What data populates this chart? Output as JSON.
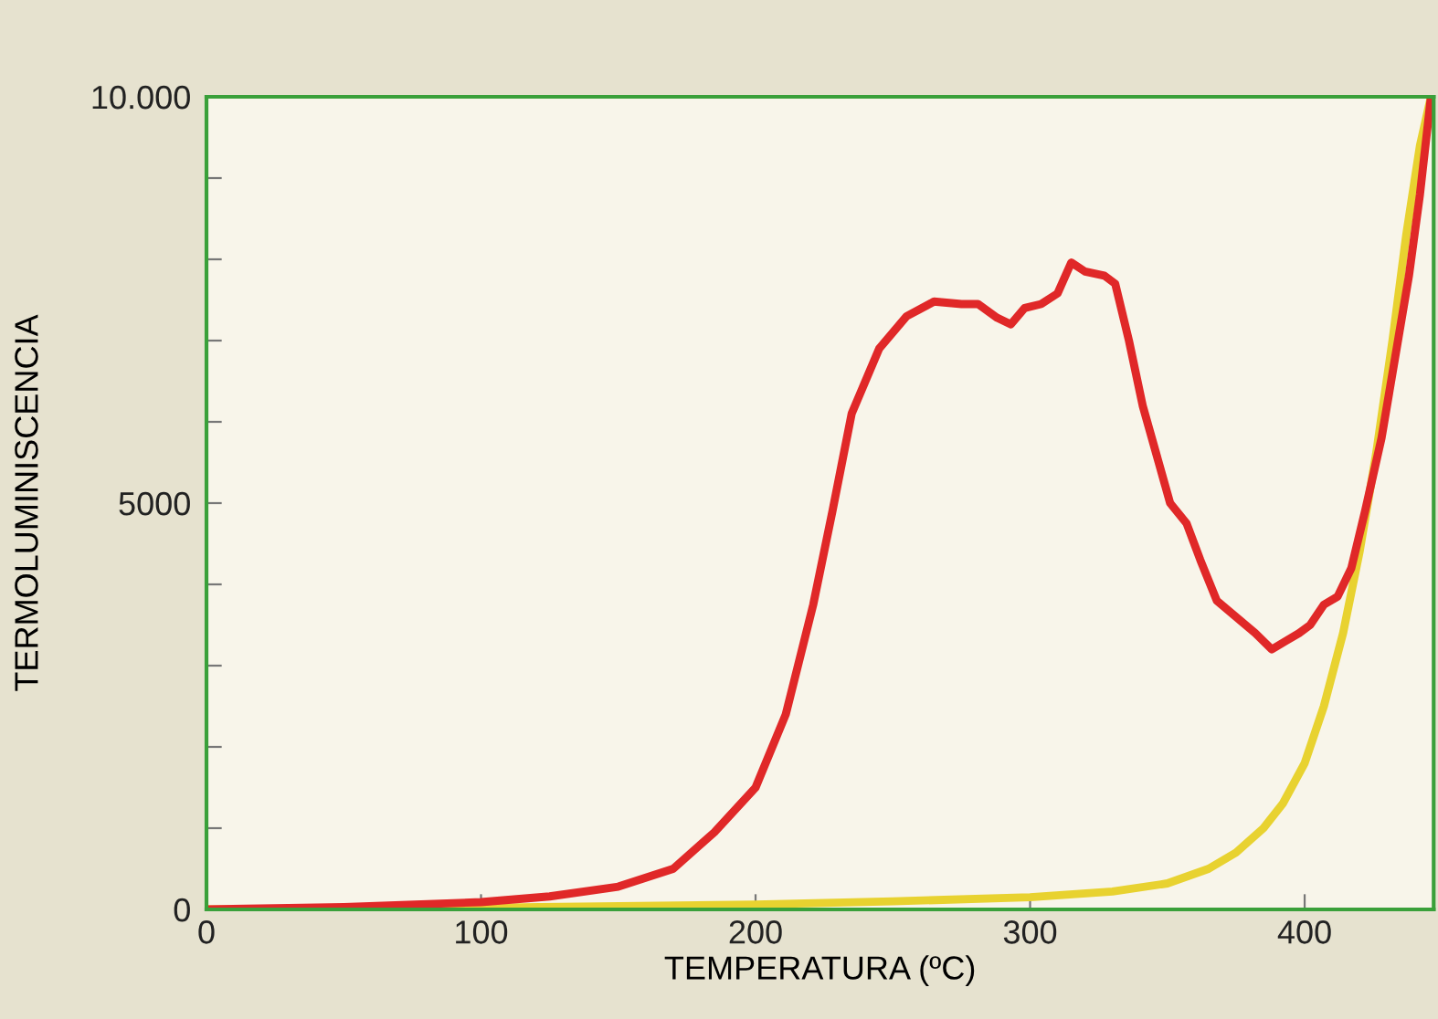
{
  "chart_data": {
    "type": "line",
    "xlabel": "TEMPERATURA (ºC)",
    "ylabel": "TERMOLUMINISCENCIA",
    "xlim": [
      0,
      447
    ],
    "ylim": [
      0,
      10000
    ],
    "xticks": [
      0,
      100,
      200,
      300,
      400
    ],
    "yticks": [
      0,
      {
        "value": 1000,
        "label": null
      },
      {
        "value": 2000,
        "label": null
      },
      {
        "value": 3000,
        "label": null
      },
      {
        "value": 4000,
        "label": null
      },
      5000,
      {
        "value": 6000,
        "label": null
      },
      {
        "value": 7000,
        "label": null
      },
      {
        "value": 8000,
        "label": null
      },
      {
        "value": 9000,
        "label": null
      },
      {
        "value": 10000,
        "label": "10.000"
      }
    ],
    "grid": false,
    "line_style": "solid",
    "marker": "none",
    "series": [
      {
        "color": "#e8d230",
        "x": [
          0,
          100,
          200,
          250,
          300,
          330,
          350,
          365,
          375,
          385,
          392,
          400,
          407,
          414,
          420,
          426,
          432,
          437,
          442,
          446
        ],
        "values": [
          0,
          20,
          60,
          100,
          150,
          220,
          320,
          500,
          700,
          1000,
          1300,
          1800,
          2500,
          3400,
          4400,
          5600,
          7000,
          8300,
          9400,
          10000
        ]
      },
      {
        "color": "#e02828",
        "x": [
          0,
          50,
          100,
          125,
          150,
          170,
          185,
          200,
          211,
          221,
          228,
          235,
          245,
          255,
          265,
          275,
          281,
          288,
          293,
          298,
          304,
          310,
          315,
          320,
          327,
          331,
          336,
          341,
          351,
          357,
          362,
          368,
          375,
          382,
          388,
          393,
          398,
          402,
          407,
          412,
          417,
          422,
          428,
          433,
          438,
          442,
          446
        ],
        "values": [
          0,
          30,
          90,
          160,
          280,
          500,
          950,
          1500,
          2400,
          3750,
          4900,
          6100,
          6900,
          7300,
          7480,
          7450,
          7450,
          7280,
          7200,
          7400,
          7450,
          7580,
          7960,
          7850,
          7800,
          7700,
          7000,
          6200,
          5000,
          4750,
          4300,
          3800,
          3600,
          3400,
          3200,
          3300,
          3400,
          3500,
          3750,
          3850,
          4200,
          4900,
          5800,
          6800,
          7800,
          8800,
          10000
        ]
      }
    ]
  }
}
